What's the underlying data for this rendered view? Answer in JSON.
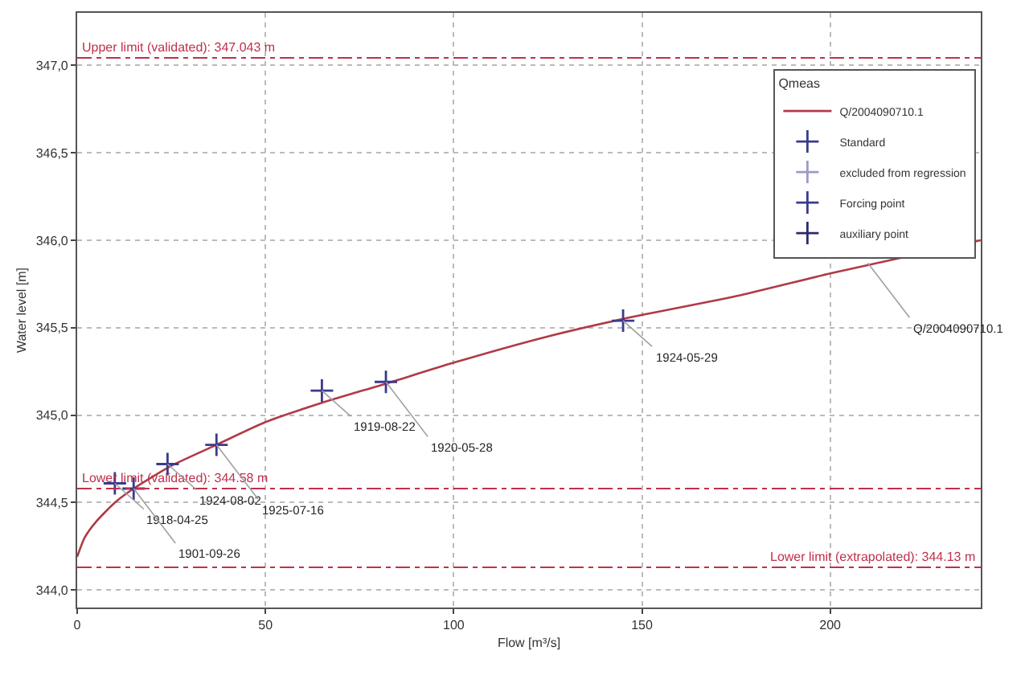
{
  "chart_data": {
    "type": "line",
    "xlabel": "Flow [m³/s]",
    "ylabel": "Water level [m]",
    "legend_title": "Qmeas",
    "series": [
      {
        "name": "Q/2004090710.1",
        "type": "line",
        "color": "#b03a48",
        "marker": "none",
        "line_style": "solid",
        "x": [
          0,
          2,
          5,
          10,
          15,
          25,
          37,
          50,
          65,
          82,
          100,
          125,
          145,
          175,
          200,
          240
        ],
        "values": [
          344.19,
          344.3,
          344.39,
          344.5,
          344.58,
          344.71,
          344.83,
          344.96,
          345.07,
          345.18,
          345.3,
          345.45,
          345.55,
          345.68,
          345.81,
          346.0
        ]
      },
      {
        "name": "Standard",
        "type": "scatter",
        "color": "#3a3a8c",
        "marker": "cross",
        "x": [
          10,
          15,
          24,
          37,
          65,
          82,
          145
        ],
        "values": [
          344.61,
          344.58,
          344.72,
          344.83,
          345.14,
          345.19,
          345.54
        ]
      },
      {
        "name": "excluded from regression",
        "type": "scatter",
        "color": "#9a9ac8",
        "marker": "cross"
      },
      {
        "name": "Forcing point",
        "type": "scatter",
        "color": "#3a3a8c",
        "marker": "cross"
      },
      {
        "name": "auxiliary point",
        "type": "scatter",
        "color": "#2a2a6a",
        "marker": "cross"
      }
    ],
    "xlim": [
      0,
      240
    ],
    "xticks": [
      0,
      50,
      100,
      150,
      200
    ],
    "ylim": [
      343.9,
      347.3
    ],
    "yticks": [
      {
        "value": 344,
        "label": "344,0"
      },
      {
        "value": 344.5,
        "label": "344,5"
      },
      {
        "value": 345,
        "label": "345,0"
      },
      {
        "value": 345.5,
        "label": "345,5"
      },
      {
        "value": 346,
        "label": "346,0"
      },
      {
        "value": 346.5,
        "label": "346,5"
      },
      {
        "value": 347,
        "label": "347,0"
      }
    ],
    "grid": true,
    "legend": "top right",
    "ref_lines": [
      {
        "axis": "y",
        "value": 347.043,
        "label": "Upper limit (validated): 347.043 m",
        "color": "#c0304a",
        "line_style": "dashdot"
      },
      {
        "axis": "y",
        "value": 344.58,
        "label": "Lower limit (validated): 344.58 m",
        "color": "#c0304a",
        "line_style": "dashdot"
      },
      {
        "axis": "y",
        "value": 344.13,
        "label": "Lower limit (extrapolated): 344.13 m",
        "color": "#c0304a",
        "line_style": "dashdot"
      }
    ],
    "annotations": [
      {
        "text": "1918-04-25",
        "x": 10,
        "y": 344.61
      },
      {
        "text": "1901-09-26",
        "x": 15,
        "y": 344.58
      },
      {
        "text": "1924-08-02",
        "x": 24,
        "y": 344.72
      },
      {
        "text": "1925-07-16",
        "x": 37,
        "y": 344.83
      },
      {
        "text": "1919-08-22",
        "x": 65,
        "y": 345.14
      },
      {
        "text": "1920-05-28",
        "x": 82,
        "y": 345.19
      },
      {
        "text": "1924-05-29",
        "x": 145,
        "y": 345.54
      },
      {
        "text": "Q/2004090710.1",
        "x": 210,
        "y": 345.87
      }
    ]
  }
}
